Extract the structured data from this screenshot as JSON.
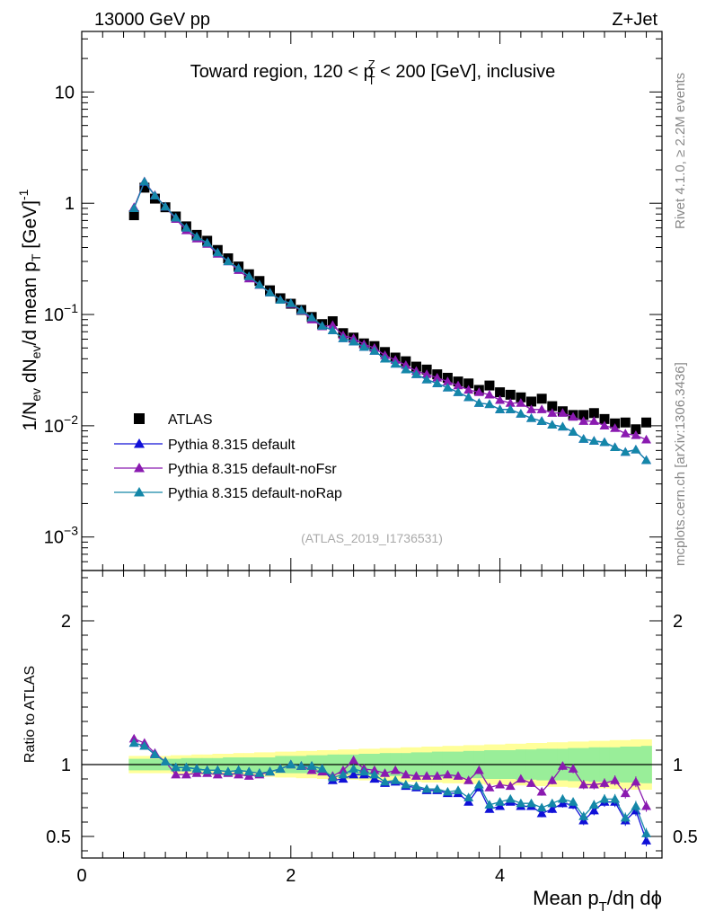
{
  "header": {
    "energy": "13000 GeV pp",
    "process": "Z+Jet"
  },
  "side_labels": {
    "rivet": "Rivet 4.1.0, ≥ 2.2M events",
    "mcplots": "mcplots.cern.ch [arXiv:1306.3436]"
  },
  "analysis_id": "(ATLAS_2019_I1736531)",
  "chart_data": [
    {
      "type": "scatter",
      "panel": "main",
      "title": "Toward region, 120 < pTZ < 200 [GeV], inclusive",
      "title_parts": {
        "pre": "Toward region, 120 < p",
        "sup": "Z",
        "sub": "T",
        "post": " < 200 [GeV], inclusive"
      },
      "ylabel": "1/Nev dNev/d mean pT [GeV]-1",
      "yscale": "log",
      "ylim": [
        0.0005,
        35
      ],
      "xlim": [
        0,
        5.55
      ],
      "y_ticks": [
        {
          "value": 0.001,
          "base": "10",
          "exp": "−3"
        },
        {
          "value": 0.01,
          "base": "10",
          "exp": "−2"
        },
        {
          "value": 0.1,
          "base": "10",
          "exp": "−1"
        },
        {
          "value": 1,
          "base": "1",
          "exp": ""
        },
        {
          "value": 10,
          "base": "10",
          "exp": ""
        }
      ],
      "x": [
        0.5,
        0.6,
        0.7,
        0.8,
        0.9,
        1.0,
        1.1,
        1.2,
        1.3,
        1.4,
        1.5,
        1.6,
        1.7,
        1.8,
        1.9,
        2.0,
        2.1,
        2.2,
        2.3,
        2.4,
        2.5,
        2.6,
        2.7,
        2.8,
        2.9,
        3.0,
        3.1,
        3.2,
        3.3,
        3.4,
        3.5,
        3.6,
        3.7,
        3.8,
        3.9,
        4.0,
        4.1,
        4.2,
        4.3,
        4.4,
        4.5,
        4.6,
        4.7,
        4.8,
        4.9,
        5.0,
        5.1,
        5.2,
        5.3,
        5.4
      ],
      "series": [
        {
          "name": "ATLAS",
          "marker": "square",
          "color": "#000000",
          "values": [
            0.78,
            1.38,
            1.1,
            0.92,
            0.76,
            0.62,
            0.52,
            0.46,
            0.38,
            0.32,
            0.27,
            0.23,
            0.2,
            0.165,
            0.14,
            0.125,
            0.11,
            0.095,
            0.082,
            0.087,
            0.068,
            0.062,
            0.055,
            0.052,
            0.046,
            0.041,
            0.038,
            0.034,
            0.032,
            0.029,
            0.027,
            0.025,
            0.024,
            0.021,
            0.023,
            0.02,
            0.019,
            0.018,
            0.0165,
            0.0175,
            0.015,
            0.0135,
            0.0125,
            0.0125,
            0.013,
            0.0115,
            0.0105,
            0.0107,
            0.0093,
            0.0107
          ]
        },
        {
          "name": "Pythia 8.315 default",
          "marker": "triangle",
          "color": "#1010d8",
          "values": [
            0.9,
            1.55,
            1.17,
            0.93,
            0.74,
            0.6,
            0.5,
            0.44,
            0.36,
            0.3,
            0.26,
            0.22,
            0.185,
            0.157,
            0.135,
            0.126,
            0.109,
            0.094,
            0.079,
            0.072,
            0.061,
            0.057,
            0.051,
            0.047,
            0.04,
            0.036,
            0.032,
            0.029,
            0.026,
            0.024,
            0.022,
            0.02,
            0.018,
            0.016,
            0.0156,
            0.014,
            0.014,
            0.0128,
            0.0117,
            0.011,
            0.0102,
            0.0098,
            0.0088,
            0.0076,
            0.0073,
            0.0071,
            0.0064,
            0.0058,
            0.0061,
            0.0049
          ]
        },
        {
          "name": "Pythia 8.315 default-noFsr",
          "marker": "triangle",
          "color": "#8a1ab0",
          "values": [
            0.92,
            1.57,
            1.18,
            0.93,
            0.72,
            0.57,
            0.48,
            0.43,
            0.35,
            0.3,
            0.25,
            0.21,
            0.184,
            0.157,
            0.135,
            0.124,
            0.108,
            0.09,
            0.078,
            0.08,
            0.065,
            0.061,
            0.054,
            0.05,
            0.043,
            0.039,
            0.035,
            0.031,
            0.029,
            0.027,
            0.025,
            0.023,
            0.021,
            0.02,
            0.019,
            0.017,
            0.016,
            0.016,
            0.014,
            0.014,
            0.013,
            0.013,
            0.012,
            0.011,
            0.011,
            0.01,
            0.0095,
            0.0085,
            0.0082,
            0.0075
          ]
        },
        {
          "name": "Pythia 8.315 default-noRap",
          "marker": "triangle",
          "color": "#1487a8",
          "values": [
            0.9,
            1.56,
            1.17,
            0.93,
            0.74,
            0.6,
            0.5,
            0.44,
            0.36,
            0.3,
            0.26,
            0.22,
            0.185,
            0.157,
            0.135,
            0.126,
            0.109,
            0.094,
            0.079,
            0.072,
            0.061,
            0.057,
            0.051,
            0.047,
            0.04,
            0.036,
            0.032,
            0.029,
            0.026,
            0.024,
            0.022,
            0.02,
            0.018,
            0.016,
            0.0156,
            0.014,
            0.014,
            0.0128,
            0.0117,
            0.011,
            0.0102,
            0.0098,
            0.0088,
            0.0076,
            0.0073,
            0.0071,
            0.0064,
            0.0058,
            0.0061,
            0.0049
          ]
        }
      ]
    },
    {
      "type": "line",
      "panel": "ratio",
      "ylabel": "Ratio to ATLAS",
      "xlabel": "Mean pT/dη dϕ",
      "xlabel_parts": {
        "pre": "Mean p",
        "sub": "T",
        "post": "/dη dϕ"
      },
      "ylim": [
        0.35,
        2.35
      ],
      "xlim": [
        0,
        5.55
      ],
      "y_ticks": [
        "0.5",
        "1",
        "2"
      ],
      "y_tick_values": [
        0.5,
        1,
        2
      ],
      "x_ticks": [
        "0",
        "2",
        "4"
      ],
      "x_tick_values": [
        0,
        2,
        4
      ],
      "reference": 1,
      "band_inner_halfwidth": [
        0.04,
        0.04,
        0.04,
        0.04,
        0.04,
        0.045,
        0.045,
        0.045,
        0.045,
        0.05,
        0.05,
        0.05,
        0.05,
        0.05,
        0.06,
        0.06,
        0.06,
        0.065,
        0.065,
        0.07,
        0.07,
        0.07,
        0.075,
        0.075,
        0.08,
        0.08,
        0.08,
        0.085,
        0.085,
        0.09,
        0.09,
        0.09,
        0.095,
        0.095,
        0.1,
        0.1,
        0.1,
        0.105,
        0.105,
        0.11,
        0.11,
        0.11,
        0.115,
        0.115,
        0.12,
        0.12,
        0.12,
        0.125,
        0.125,
        0.13
      ],
      "band_outer_halfwidth": [
        0.06,
        0.06,
        0.06,
        0.06,
        0.065,
        0.065,
        0.07,
        0.07,
        0.075,
        0.075,
        0.08,
        0.08,
        0.085,
        0.085,
        0.09,
        0.09,
        0.095,
        0.095,
        0.1,
        0.1,
        0.105,
        0.105,
        0.11,
        0.11,
        0.115,
        0.115,
        0.12,
        0.12,
        0.125,
        0.125,
        0.13,
        0.13,
        0.135,
        0.135,
        0.14,
        0.14,
        0.145,
        0.145,
        0.15,
        0.15,
        0.155,
        0.155,
        0.16,
        0.16,
        0.165,
        0.165,
        0.17,
        0.17,
        0.175,
        0.175
      ],
      "series": [
        {
          "name": "Pythia 8.315 default",
          "color": "#1010d8",
          "values": [
            1.15,
            1.13,
            1.07,
            1.02,
            0.98,
            0.98,
            0.97,
            0.96,
            0.96,
            0.95,
            0.96,
            0.95,
            0.94,
            0.95,
            0.97,
            1.0,
            0.99,
            0.99,
            0.97,
            0.89,
            0.9,
            0.93,
            0.93,
            0.9,
            0.87,
            0.88,
            0.85,
            0.84,
            0.82,
            0.82,
            0.8,
            0.8,
            0.74,
            0.84,
            0.69,
            0.71,
            0.74,
            0.71,
            0.71,
            0.66,
            0.69,
            0.73,
            0.72,
            0.61,
            0.68,
            0.74,
            0.74,
            0.61,
            0.68,
            0.47
          ]
        },
        {
          "name": "Pythia 8.315 default-noFsr",
          "color": "#8a1ab0",
          "values": [
            1.18,
            1.15,
            1.08,
            1.02,
            0.93,
            0.93,
            0.94,
            0.94,
            0.93,
            0.94,
            0.93,
            0.92,
            0.93,
            0.95,
            0.97,
            1.0,
            0.99,
            0.96,
            0.95,
            0.92,
            0.96,
            1.03,
            0.97,
            0.96,
            0.94,
            0.96,
            0.93,
            0.92,
            0.92,
            0.92,
            0.93,
            0.92,
            0.89,
            0.96,
            0.84,
            0.86,
            0.85,
            0.9,
            0.87,
            0.81,
            0.89,
            0.99,
            0.97,
            0.86,
            0.86,
            0.87,
            0.89,
            0.8,
            0.88,
            0.71
          ]
        },
        {
          "name": "Pythia 8.315 default-noRap",
          "color": "#1487a8",
          "values": [
            1.15,
            1.13,
            1.07,
            1.02,
            0.98,
            0.98,
            0.97,
            0.96,
            0.96,
            0.95,
            0.96,
            0.95,
            0.94,
            0.95,
            0.97,
            1.0,
            0.99,
            0.99,
            0.97,
            0.91,
            0.93,
            0.97,
            0.95,
            0.93,
            0.88,
            0.89,
            0.86,
            0.85,
            0.83,
            0.83,
            0.81,
            0.82,
            0.77,
            0.86,
            0.72,
            0.74,
            0.76,
            0.73,
            0.73,
            0.7,
            0.73,
            0.76,
            0.74,
            0.64,
            0.72,
            0.76,
            0.76,
            0.63,
            0.71,
            0.52
          ]
        }
      ]
    }
  ]
}
